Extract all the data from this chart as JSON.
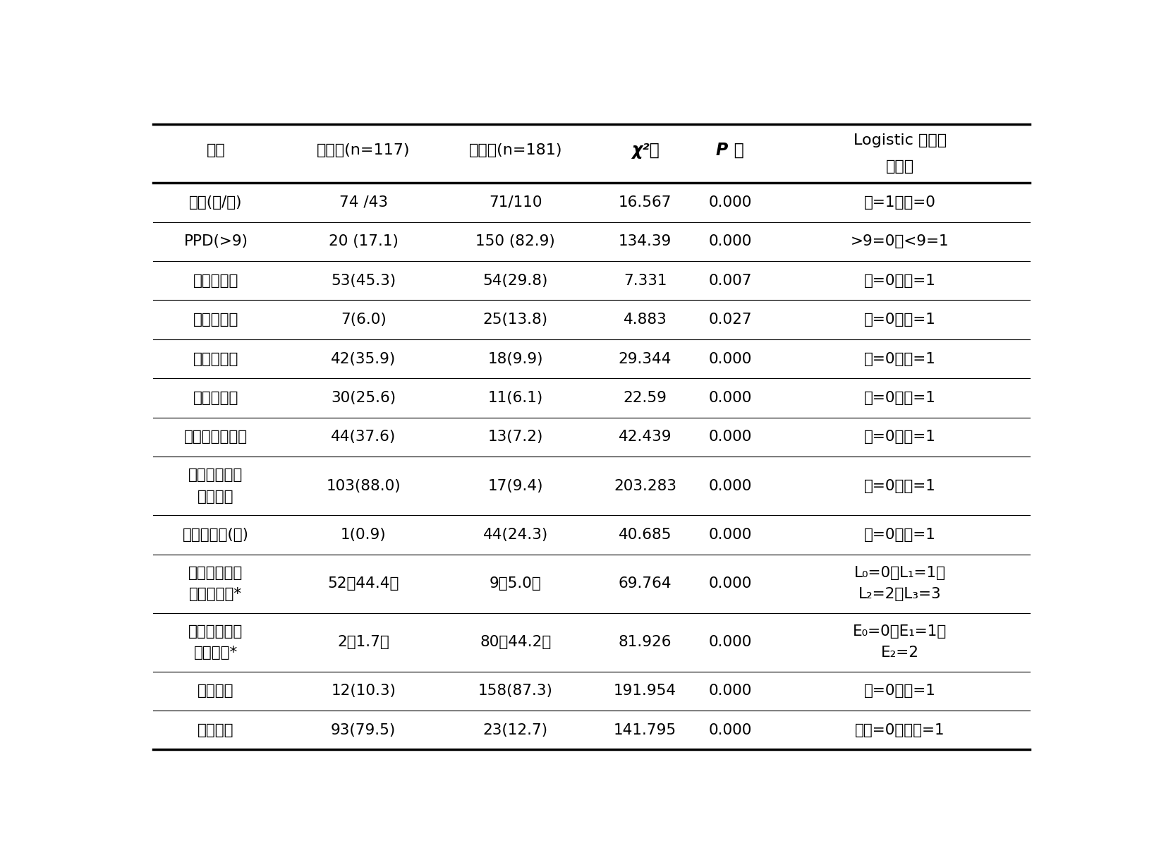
{
  "columns_row1": [
    "变量",
    "结节病(n=117)",
    "结核病(n=181)",
    "χ²值",
    "P 值",
    "Logistic 分析变"
  ],
  "columns_row2": [
    "",
    "",
    "",
    "",
    "",
    "量赋值"
  ],
  "rows": [
    {
      "var": [
        "性别(女/男)"
      ],
      "col2": "74 /43",
      "col3": "71/110",
      "chi2": "16.567",
      "pval": "0.000",
      "logistic": [
        "男=1，女=0"
      ]
    },
    {
      "var": [
        "PPD(>9)"
      ],
      "col2": "20 (17.1)",
      "col3": "150 (82.9)",
      "chi2": "134.39",
      "pval": "0.000",
      "logistic": [
        ">9=0，<9=1"
      ]
    },
    {
      "var": [
        "干咳（有）"
      ],
      "col2": "53(45.3)",
      "col3": "54(29.8)",
      "chi2": "7.331",
      "pval": "0.007",
      "logistic": [
        "无=0，有=1"
      ]
    },
    {
      "var": [
        "痰血（有）"
      ],
      "col2": "7(6.0)",
      "col3": "25(13.8)",
      "chi2": "4.883",
      "pval": "0.027",
      "logistic": [
        "有=0，无=1"
      ]
    },
    {
      "var": [
        "胸闷（有）"
      ],
      "col2": "42(35.9)",
      "col3": "18(9.9)",
      "chi2": "29.344",
      "pval": "0.000",
      "logistic": [
        "无=0，有=1"
      ]
    },
    {
      "var": [
        "气促（有）"
      ],
      "col2": "30(25.6)",
      "col3": "11(6.1)",
      "chi2": "22.59",
      "pval": "0.000",
      "logistic": [
        "无=0，有=1"
      ]
    },
    {
      "var": [
        "肺外表现（有）"
      ],
      "col2": "44(37.6)",
      "col3": "13(7.2)",
      "chi2": "42.439",
      "pval": "0.000",
      "logistic": [
        "无=0，有=1"
      ]
    },
    {
      "var": [
        "纵隔淋巴结肿",
        "大并对称"
      ],
      "col2": "103(88.0)",
      "col3": "17(9.4)",
      "chi2": "203.283",
      "pval": "0.000",
      "logistic": [
        "无=0，有=1"
      ]
    },
    {
      "var": [
        "空洞和钙化(有)"
      ],
      "col2": "1(0.9)",
      "col3": "44(24.3)",
      "chi2": "40.685",
      "pval": "0.000",
      "logistic": [
        "有=0，无=1"
      ]
    },
    {
      "var": [
        "肺部影像学部",
        "位（正常）*"
      ],
      "col2": "52（44.4）",
      "col3": "9（5.0）",
      "chi2": "69.764",
      "pval": "0.000",
      "logistic": [
        "L₀=0，L₁=1，",
        "L₂=2，L₃=3"
      ]
    },
    {
      "var": [
        "肺部核素表现",
        "（正常）*"
      ],
      "col2": "2（1.7）",
      "col3": "80（44.2）",
      "chi2": "81.926",
      "pval": "0.000",
      "logistic": [
        "E₀=0，E₁=1，",
        "E₂=2"
      ]
    },
    {
      "var": [
        "病理坏死"
      ],
      "col2": "12(10.3)",
      "col3": "158(87.3)",
      "chi2": "191.954",
      "pval": "0.000",
      "logistic": [
        "有=0，无=1"
      ]
    },
    {
      "var": [
        "病理网染"
      ],
      "col2": "93(79.5)",
      "col3": "23(12.7)",
      "chi2": "141.795",
      "pval": "0.000",
      "logistic": [
        "减少=0，增加=1"
      ]
    }
  ],
  "bg_color": "#ffffff",
  "text_color": "#000000",
  "fig_width": 16.36,
  "fig_height": 11.99
}
